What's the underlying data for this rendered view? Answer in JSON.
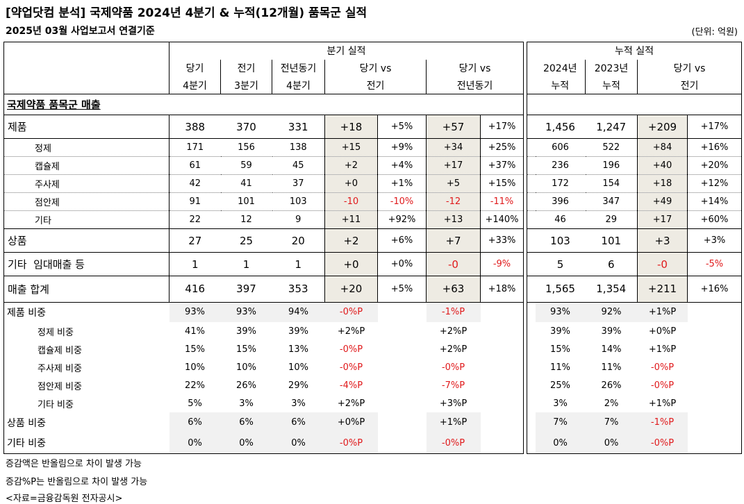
{
  "title": "[약업닷컴 분석] 국제약품 2024년 4분기 & 누적(12개월) 품목군 실적",
  "subtitle": "2025년 03월 사업보고서 연결기준",
  "unit": "(단위: 억원)",
  "headers": {
    "quarter_group": "분기 실적",
    "cum_group": "누적 실적",
    "q_cur": [
      "당기",
      "4분기"
    ],
    "q_prev": [
      "전기",
      "3분기"
    ],
    "q_yoy": [
      "전년동기",
      "4분기"
    ],
    "q_vs_prev": [
      "당기 vs",
      "전기"
    ],
    "q_vs_yoy": [
      "당기 vs",
      "전년동기"
    ],
    "c_2024": [
      "2024년",
      "누적"
    ],
    "c_2023": [
      "2023년",
      "누적"
    ],
    "c_vs": [
      "당기 vs",
      "전기"
    ]
  },
  "section_title": "국제약품 품목군 매출",
  "rows": {
    "products": {
      "label": "제품",
      "cur": "388",
      "prev": "370",
      "yoy": "331",
      "d_prev": "+18",
      "p_prev": "+5%",
      "d_yoy": "+57",
      "p_yoy": "+17%",
      "c24": "1,456",
      "c23": "1,247",
      "d_c": "+209",
      "p_c": "+17%"
    },
    "tablet": {
      "label": "정제",
      "cur": "171",
      "prev": "156",
      "yoy": "138",
      "d_prev": "+15",
      "p_prev": "+9%",
      "d_yoy": "+34",
      "p_yoy": "+25%",
      "c24": "606",
      "c23": "522",
      "d_c": "+84",
      "p_c": "+16%"
    },
    "capsule": {
      "label": "캡슐제",
      "cur": "61",
      "prev": "59",
      "yoy": "45",
      "d_prev": "+2",
      "p_prev": "+4%",
      "d_yoy": "+17",
      "p_yoy": "+37%",
      "c24": "236",
      "c23": "196",
      "d_c": "+40",
      "p_c": "+20%"
    },
    "injection": {
      "label": "주사제",
      "cur": "42",
      "prev": "41",
      "yoy": "37",
      "d_prev": "+0",
      "p_prev": "+1%",
      "d_yoy": "+5",
      "p_yoy": "+15%",
      "c24": "172",
      "c23": "154",
      "d_c": "+18",
      "p_c": "+12%"
    },
    "eyedrop": {
      "label": "점안제",
      "cur": "91",
      "prev": "101",
      "yoy": "103",
      "d_prev": "-10",
      "p_prev": "-10%",
      "d_yoy": "-12",
      "p_yoy": "-11%",
      "c24": "396",
      "c23": "347",
      "d_c": "+49",
      "p_c": "+14%"
    },
    "other": {
      "label": "기타",
      "cur": "22",
      "prev": "12",
      "yoy": "9",
      "d_prev": "+11",
      "p_prev": "+92%",
      "d_yoy": "+13",
      "p_yoy": "+140%",
      "c24": "46",
      "c23": "29",
      "d_c": "+17",
      "p_c": "+60%"
    },
    "goods": {
      "label": "상품",
      "cur": "27",
      "prev": "25",
      "yoy": "20",
      "d_prev": "+2",
      "p_prev": "+6%",
      "d_yoy": "+7",
      "p_yoy": "+33%",
      "c24": "103",
      "c23": "101",
      "d_c": "+3",
      "p_c": "+3%"
    },
    "etc": {
      "label": "기타  임대매출 등",
      "cur": "1",
      "prev": "1",
      "yoy": "1",
      "d_prev": "+0",
      "p_prev": "+0%",
      "d_yoy": "-0",
      "p_yoy": "-9%",
      "c24": "5",
      "c23": "6",
      "d_c": "-0",
      "p_c": "-5%"
    },
    "total": {
      "label": "매출 합계",
      "cur": "416",
      "prev": "397",
      "yoy": "353",
      "d_prev": "+20",
      "p_prev": "+5%",
      "d_yoy": "+63",
      "p_yoy": "+18%",
      "c24": "1,565",
      "c23": "1,354",
      "d_c": "+211",
      "p_c": "+16%"
    }
  },
  "ratios": {
    "products": {
      "label": "제품 비중",
      "cur": "93%",
      "prev": "93%",
      "yoy": "94%",
      "d_prev": "-0%P",
      "d_yoy": "-1%P",
      "c24": "93%",
      "c23": "92%",
      "d_c": "+1%P"
    },
    "tablet": {
      "label": "정제 비중",
      "cur": "41%",
      "prev": "39%",
      "yoy": "39%",
      "d_prev": "+2%P",
      "d_yoy": "+2%P",
      "c24": "39%",
      "c23": "39%",
      "d_c": "+0%P"
    },
    "capsule": {
      "label": "캡슐제 비중",
      "cur": "15%",
      "prev": "15%",
      "yoy": "13%",
      "d_prev": "-0%P",
      "d_yoy": "+2%P",
      "c24": "15%",
      "c23": "14%",
      "d_c": "+1%P"
    },
    "injection": {
      "label": "주사제 비중",
      "cur": "10%",
      "prev": "10%",
      "yoy": "10%",
      "d_prev": "-0%P",
      "d_yoy": "-0%P",
      "c24": "11%",
      "c23": "11%",
      "d_c": "-0%P"
    },
    "eyedrop": {
      "label": "점안제 비중",
      "cur": "22%",
      "prev": "26%",
      "yoy": "29%",
      "d_prev": "-4%P",
      "d_yoy": "-7%P",
      "c24": "25%",
      "c23": "26%",
      "d_c": "-0%P"
    },
    "other": {
      "label": "기타 비중",
      "cur": "5%",
      "prev": "3%",
      "yoy": "3%",
      "d_prev": "+2%P",
      "d_yoy": "+3%P",
      "c24": "3%",
      "c23": "2%",
      "d_c": "+1%P"
    },
    "goods": {
      "label": "상품 비중",
      "cur": "6%",
      "prev": "6%",
      "yoy": "6%",
      "d_prev": "+0%P",
      "d_yoy": "+1%P",
      "c24": "7%",
      "c23": "7%",
      "d_c": "-1%P"
    },
    "etc": {
      "label": "기타 비중",
      "cur": "0%",
      "prev": "0%",
      "yoy": "0%",
      "d_prev": "-0%P",
      "d_yoy": "-0%P",
      "c24": "0%",
      "c23": "0%",
      "d_c": "-0%P"
    }
  },
  "footnotes": [
    "증감액은 반올림으로 차이 발생 가능",
    "증감%P는 반올림으로 차이 발생 가능",
    "<자료=금융감독원 전자공시>"
  ],
  "colors": {
    "negative": "#e0191b",
    "delta_shade": "#eeebe3",
    "ratio_shade": "#f1f1f1"
  }
}
